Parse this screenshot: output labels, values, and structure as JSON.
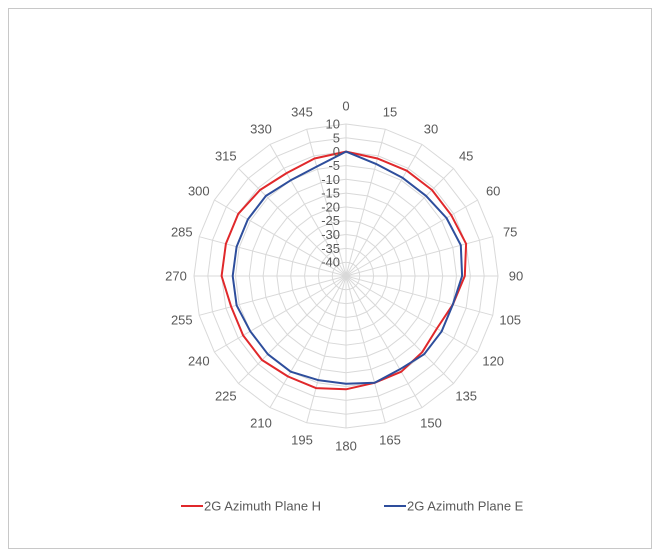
{
  "chart_data": {
    "type": "radar",
    "title": "",
    "angles": [
      "0",
      "15",
      "30",
      "45",
      "60",
      "75",
      "90",
      "105",
      "120",
      "135",
      "150",
      "165",
      "180",
      "195",
      "210",
      "225",
      "240",
      "255",
      "270",
      "285",
      "300",
      "315",
      "330",
      "345"
    ],
    "r_ticks": [
      "10",
      "5",
      "0",
      "-5",
      "-10",
      "-15",
      "-20",
      "-25",
      "-30",
      "-35",
      "-40"
    ],
    "rlim": [
      -45,
      10
    ],
    "grid": true,
    "legend_position": "bottom",
    "series": [
      {
        "name": "2G Azimuth Plane H",
        "color": "#e0282b",
        "values": [
          0,
          -1,
          -1,
          -1,
          -1,
          0,
          -2,
          -5,
          -7,
          -6,
          -5,
          -5,
          -4,
          -3,
          -3,
          -2,
          -2,
          -2,
          0,
          0,
          0,
          -1,
          -2,
          -1
        ]
      },
      {
        "name": "2G Azimuth Plane E",
        "color": "#2e4e9c",
        "values": [
          0,
          -3,
          -4,
          -4,
          -3,
          -2,
          -3,
          -5,
          -5,
          -5,
          -6,
          -5,
          -6,
          -6,
          -5,
          -5,
          -5,
          -4,
          -4,
          -4,
          -4,
          -4,
          -5,
          -4
        ]
      }
    ]
  }
}
